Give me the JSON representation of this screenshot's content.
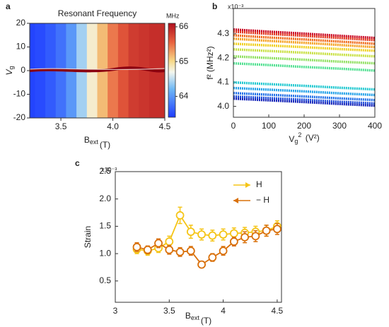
{
  "chart_data": [
    {
      "panel": "a",
      "type": "heatmap",
      "title": "Resonant Frequency",
      "x_label": "B",
      "x_label_sub": "ext",
      "x_label_unit": "(T)",
      "y_label": "V",
      "y_label_sub": "g",
      "colorbar_label": "MHz",
      "x": [
        3.2,
        3.3,
        3.4,
        3.5,
        3.6,
        3.7,
        3.8,
        3.9,
        4.0,
        4.1,
        4.2,
        4.3,
        4.4,
        4.5
      ],
      "values": [
        63.45,
        63.5,
        63.6,
        63.75,
        64.0,
        64.4,
        64.8,
        65.15,
        65.45,
        65.65,
        65.8,
        65.85,
        65.9,
        65.9
      ],
      "xlim": [
        3.2,
        4.5
      ],
      "xticks": [
        3.5,
        {
          "value": 4,
          "label": "4.0"
        },
        4.5
      ],
      "ylim": [
        -20,
        20
      ],
      "yticks": [
        -20,
        -10,
        0,
        10,
        20
      ],
      "clim": [
        63.4,
        66.1
      ],
      "cticks": [
        64,
        65,
        66
      ]
    },
    {
      "panel": "b",
      "type": "line",
      "y_label": "f² (MHz²)",
      "y_multiplier": "x10⁻³",
      "x_label": "V",
      "x_label_sub": "g",
      "x_label_sup": "2",
      "x_label_unit": " (V²)",
      "x": [
        0,
        100,
        200,
        300,
        400
      ],
      "series": [
        {
          "color": "#c8001e",
          "values": [
            4.318,
            4.309,
            4.301,
            4.292,
            4.283
          ]
        },
        {
          "color": "#e0301a",
          "values": [
            4.309,
            4.3,
            4.292,
            4.283,
            4.274
          ]
        },
        {
          "color": "#f06a18",
          "values": [
            4.294,
            4.285,
            4.277,
            4.268,
            4.259
          ]
        },
        {
          "color": "#f5a020",
          "values": [
            4.28,
            4.271,
            4.263,
            4.254,
            4.245
          ]
        },
        {
          "color": "#f0d020",
          "values": [
            4.259,
            4.252,
            4.245,
            4.237,
            4.23
          ]
        },
        {
          "color": "#c8e040",
          "values": [
            4.236,
            4.229,
            4.222,
            4.214,
            4.207
          ]
        },
        {
          "color": "#90e060",
          "values": [
            4.207,
            4.2,
            4.193,
            4.185,
            4.178
          ]
        },
        {
          "color": "#50e090",
          "values": [
            4.178,
            4.171,
            4.163,
            4.156,
            4.148
          ]
        },
        {
          "color": "#20c8d0",
          "values": [
            4.099,
            4.092,
            4.085,
            4.077,
            4.07
          ]
        },
        {
          "color": "#20a0e8",
          "values": [
            4.076,
            4.069,
            4.062,
            4.054,
            4.047
          ]
        },
        {
          "color": "#2070e8",
          "values": [
            4.055,
            4.048,
            4.041,
            4.033,
            4.026
          ]
        },
        {
          "color": "#1a48d8",
          "values": [
            4.041,
            4.034,
            4.027,
            4.019,
            4.012
          ]
        },
        {
          "color": "#1020b8",
          "values": [
            4.032,
            4.025,
            4.018,
            4.01,
            4.003
          ]
        }
      ],
      "xlim": [
        0,
        400
      ],
      "xticks": [
        0,
        100,
        200,
        300,
        400
      ],
      "ylim": [
        3.955,
        4.405
      ],
      "yticks": [
        {
          "value": 4,
          "label": "4.0"
        },
        4.1,
        4.2,
        4.3
      ]
    },
    {
      "panel": "c",
      "type": "errorbar",
      "y_label": "Strain",
      "y_multiplier": "x10⁻³",
      "x_label": "B",
      "x_label_sub": "ext",
      "x_label_unit": "(T)",
      "x": [
        3.2,
        3.3,
        3.4,
        3.5,
        3.6,
        3.7,
        3.8,
        3.9,
        4.0,
        4.1,
        4.2,
        4.3,
        4.4,
        4.5
      ],
      "series": [
        {
          "name": "H",
          "color": "#f5c518",
          "values": [
            1.08,
            1.05,
            1.1,
            1.22,
            1.7,
            1.4,
            1.35,
            1.33,
            1.35,
            1.37,
            1.38,
            1.4,
            1.42,
            1.5
          ],
          "errors": [
            0.08,
            0.08,
            0.08,
            0.1,
            0.15,
            0.12,
            0.1,
            0.1,
            0.1,
            0.1,
            0.1,
            0.1,
            0.1,
            0.1
          ]
        },
        {
          "name": "− H",
          "color": "#d9700a",
          "values": [
            1.12,
            1.07,
            1.19,
            1.07,
            1.03,
            1.05,
            0.8,
            0.93,
            1.05,
            1.22,
            1.3,
            1.32,
            1.42,
            1.45
          ],
          "errors": [
            0.08,
            0.07,
            0.08,
            0.08,
            0.08,
            0.08,
            0.06,
            0.07,
            0.08,
            0.08,
            0.1,
            0.1,
            0.1,
            0.1
          ]
        }
      ],
      "xlim": [
        3,
        4.54
      ],
      "xticks": [
        3,
        3.5,
        4,
        4.5
      ],
      "ylim": [
        0.11,
        2.5
      ],
      "yticks": [
        0.5,
        {
          "value": 1,
          "label": "1.0"
        },
        1.5,
        {
          "value": 2,
          "label": "2.0"
        },
        2.5
      ]
    }
  ]
}
